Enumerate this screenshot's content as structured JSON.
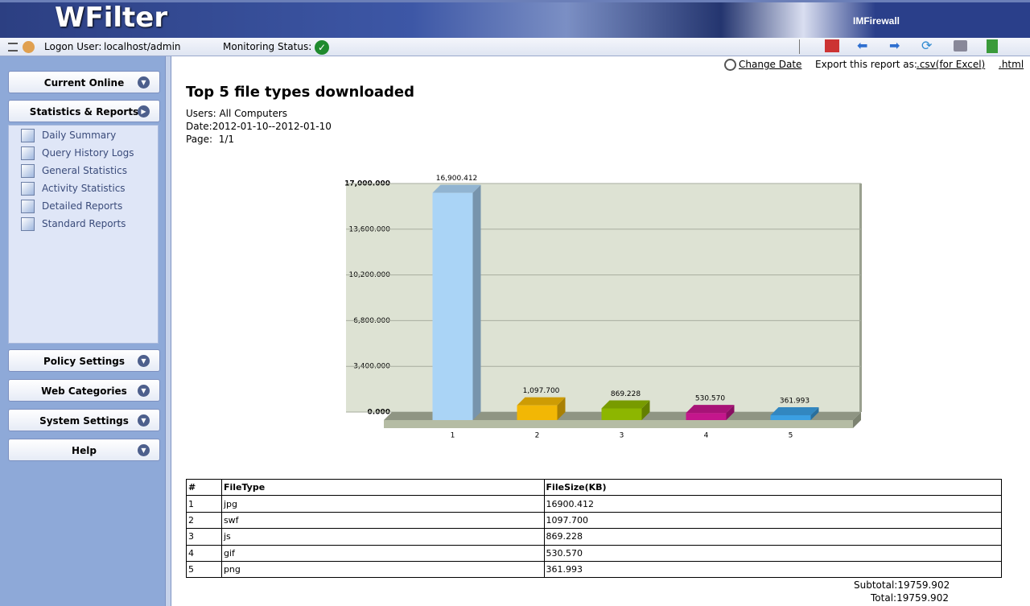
{
  "header": {
    "brand": "WFilter",
    "product": "IMFirewall"
  },
  "toolbar": {
    "logon_label": "Logon User:",
    "logon_user": "localhost/admin",
    "monitoring_label": "Monitoring Status:"
  },
  "sidebar": {
    "menus": [
      {
        "label": "Current Online"
      },
      {
        "label": "Statistics & Reports",
        "items": [
          "Daily Summary",
          "Query History Logs",
          "General Statistics",
          "Activity Statistics",
          "Detailed Reports",
          "Standard Reports"
        ]
      },
      {
        "label": "Policy Settings"
      },
      {
        "label": "Web Categories"
      },
      {
        "label": "System Settings"
      },
      {
        "label": "Help"
      }
    ]
  },
  "report": {
    "change_date": "Change Date",
    "export_label": "Export this report as:",
    "export_csv": ".csv(for Excel)",
    "export_html": ".html",
    "title": "Top 5 file types downloaded",
    "users": "Users: All Computers",
    "date": "Date:2012-01-10--2012-01-10",
    "page": "Page:  1/1"
  },
  "chart_data": {
    "type": "bar",
    "categories": [
      "1",
      "2",
      "3",
      "4",
      "5"
    ],
    "values": [
      16900.412,
      1097.7,
      869.228,
      530.57,
      361.993
    ],
    "value_labels": [
      "16,900.412",
      "1,097.700",
      "869.228",
      "530.570",
      "361.993"
    ],
    "colors": [
      "#aad4f6",
      "#f2b705",
      "#8db600",
      "#c4168c",
      "#3b9fe2"
    ],
    "ylim": [
      0,
      17000
    ],
    "yticks": [
      {
        "value": 0,
        "label": "0.000"
      },
      {
        "value": 3400,
        "label": "3,400.000"
      },
      {
        "value": 6800,
        "label": "6,800.000"
      },
      {
        "value": 10200,
        "label": "10,200.000"
      },
      {
        "value": 13600,
        "label": "13,600.000"
      },
      {
        "value": 17000,
        "label": "17,000.000"
      }
    ],
    "grid": true
  },
  "table": {
    "headers": [
      "#",
      "FileType",
      "FileSize(KB)"
    ],
    "rows": [
      [
        "1",
        "jpg",
        "16900.412"
      ],
      [
        "2",
        "swf",
        "1097.700"
      ],
      [
        "3",
        "js",
        "869.228"
      ],
      [
        "4",
        "gif",
        "530.570"
      ],
      [
        "5",
        "png",
        "361.993"
      ]
    ]
  },
  "totals": {
    "subtotal": "Subtotal:19759.902",
    "total": "Total:19759.902"
  }
}
